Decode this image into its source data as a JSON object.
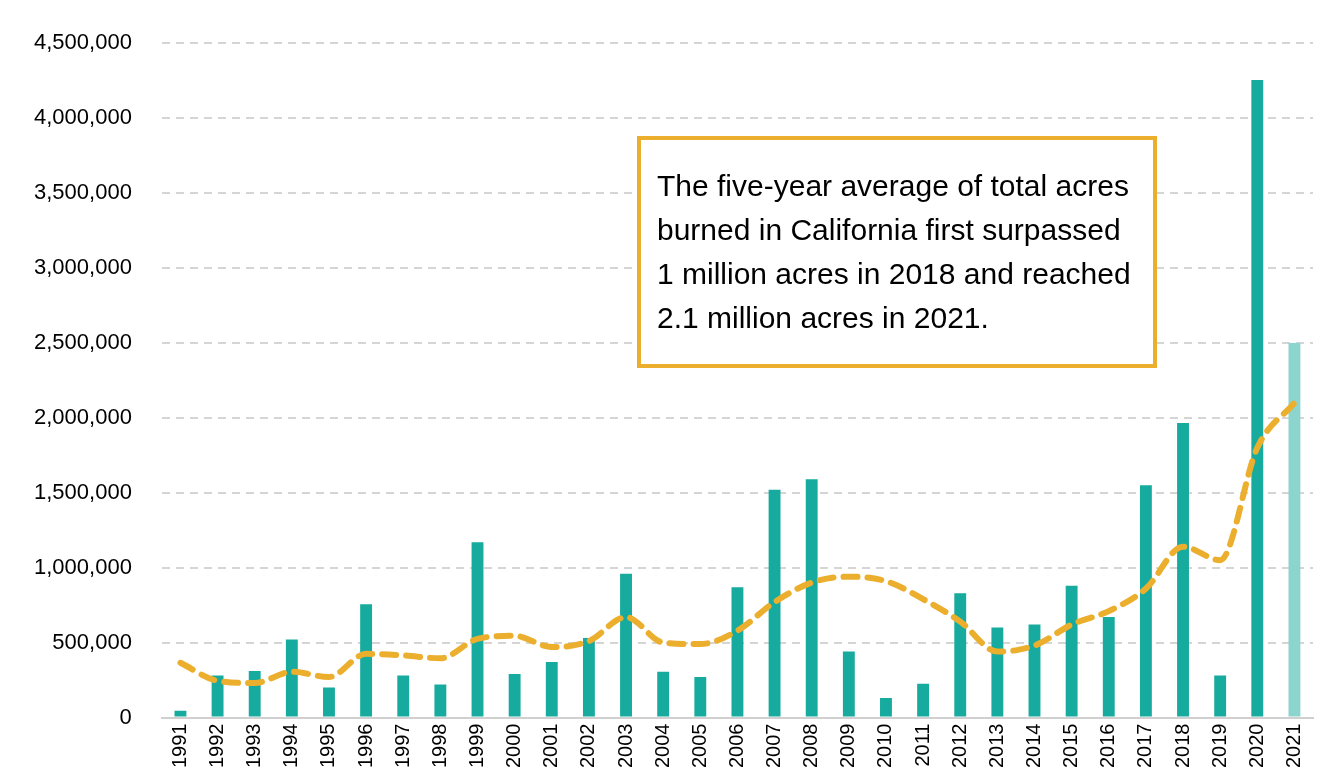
{
  "chart_data": {
    "type": "bar",
    "categories": [
      "1991",
      "1992",
      "1993",
      "1994",
      "1995",
      "1996",
      "1997",
      "1998",
      "1999",
      "2000",
      "2001",
      "2002",
      "2003",
      "2004",
      "2005",
      "2006",
      "2007",
      "2008",
      "2009",
      "2010",
      "2011",
      "2012",
      "2013",
      "2014",
      "2015",
      "2016",
      "2017",
      "2018",
      "2019",
      "2020",
      "2021"
    ],
    "series": [
      {
        "colors": [
          "#16ab9e",
          "#16ab9e",
          "#16ab9e",
          "#16ab9e",
          "#16ab9e",
          "#16ab9e",
          "#16ab9e",
          "#16ab9e",
          "#16ab9e",
          "#16ab9e",
          "#16ab9e",
          "#16ab9e",
          "#16ab9e",
          "#16ab9e",
          "#16ab9e",
          "#16ab9e",
          "#16ab9e",
          "#16ab9e",
          "#16ab9e",
          "#16ab9e",
          "#16ab9e",
          "#16ab9e",
          "#16ab9e",
          "#16ab9e",
          "#16ab9e",
          "#16ab9e",
          "#16ab9e",
          "#16ab9e",
          "#16ab9e",
          "#16ab9e",
          "#8bd5ce"
        ],
        "values": [
          45000,
          280000,
          310000,
          520000,
          200000,
          755000,
          280000,
          220000,
          1170000,
          290000,
          370000,
          530000,
          960000,
          305000,
          270000,
          870000,
          1520000,
          1590000,
          440000,
          130000,
          225000,
          830000,
          600000,
          620000,
          880000,
          670000,
          1550000,
          1965000,
          280000,
          4255000,
          2500000
        ]
      },
      {
        "type": "line",
        "color": "#ecae2d",
        "line_style": "dashed",
        "values": [
          365000,
          245000,
          230000,
          305000,
          270000,
          425000,
          415000,
          395000,
          525000,
          545000,
          470000,
          510000,
          670000,
          500000,
          490000,
          580000,
          770000,
          900000,
          940000,
          910000,
          790000,
          640000,
          440000,
          480000,
          620000,
          710000,
          860000,
          1140000,
          1050000,
          1800000,
          2100000
        ]
      }
    ],
    "ylim": [
      0,
      4500000
    ],
    "yticks": [
      {
        "value": 0,
        "label": "0"
      },
      {
        "value": 500000,
        "label": "500,000"
      },
      {
        "value": 1000000,
        "label": "1,000,000"
      },
      {
        "value": 1500000,
        "label": "1,500,000"
      },
      {
        "value": 2000000,
        "label": "2,000,000"
      },
      {
        "value": 2500000,
        "label": "2,500,000"
      },
      {
        "value": 3000000,
        "label": "3,000,000"
      },
      {
        "value": 3500000,
        "label": "3,500,000"
      },
      {
        "value": 4000000,
        "label": "4,000,000"
      },
      {
        "value": 4500000,
        "label": "4,500,000"
      }
    ],
    "grid": "y",
    "legend": false,
    "marker": "none",
    "annotations": [
      "The five-year average of total acres burned in California first surpassed 1 million acres in 2018 and reached 2.1 million acres in 2021."
    ]
  }
}
